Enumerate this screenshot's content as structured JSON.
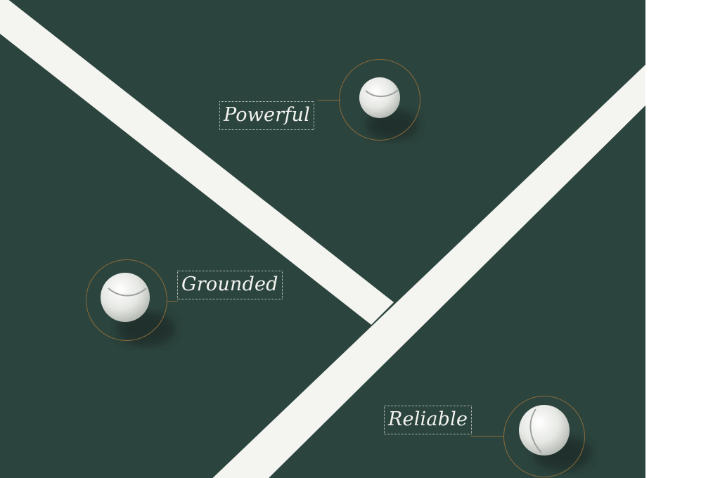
{
  "colors": {
    "court": "#2e4741",
    "line": "#f4f5f1",
    "ring": "#8a6b3a",
    "label_text": "#f3f3ef",
    "label_border": "#c9cfcc"
  },
  "labels": {
    "powerful": "Powerful",
    "grounded": "Grounded",
    "reliable": "Reliable"
  },
  "icons": {
    "ball": "tennis-ball-icon"
  }
}
